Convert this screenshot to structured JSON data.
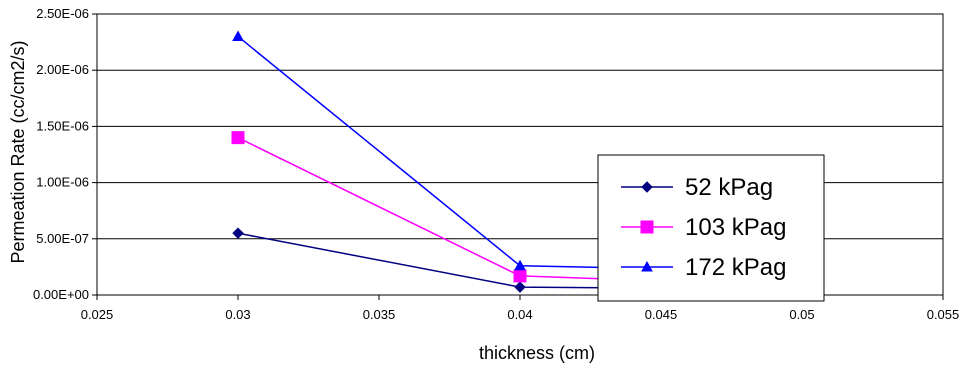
{
  "chart_data": {
    "type": "line",
    "title": "",
    "xlabel": "thickness (cm)",
    "ylabel": "Permeation Rate (cc/cm2/s)",
    "xlim": [
      0.025,
      0.055
    ],
    "ylim": [
      0,
      2.5e-06
    ],
    "x_ticks": [
      0.025,
      0.03,
      0.035,
      0.04,
      0.045,
      0.05,
      0.055
    ],
    "x_tick_labels": [
      "0.025",
      "0.03",
      "0.035",
      "0.04",
      "0.045",
      "0.05",
      "0.055"
    ],
    "y_ticks": [
      0,
      5e-07,
      1e-06,
      1.5e-06,
      2e-06,
      2.5e-06
    ],
    "y_tick_labels": [
      "0.00E+00",
      "5.00E-07",
      "1.00E-06",
      "1.50E-06",
      "2.00E-06",
      "2.50E-06"
    ],
    "grid": "horizontal",
    "legend_position": "right",
    "series": [
      {
        "name": "52 kPag",
        "marker": "diamond",
        "color": "#000080",
        "x": [
          0.03,
          0.04,
          0.05
        ],
        "y": [
          5.5e-07,
          7e-08,
          5e-08
        ]
      },
      {
        "name": "103 kPag",
        "marker": "square",
        "color": "#ff00ff",
        "x": [
          0.03,
          0.04,
          0.05
        ],
        "y": [
          1.4e-06,
          1.7e-07,
          8e-08
        ]
      },
      {
        "name": "172 kPag",
        "marker": "triangle",
        "color": "#0000ff",
        "x": [
          0.03,
          0.04,
          0.05
        ],
        "y": [
          2.3e-06,
          2.6e-07,
          2.1e-07
        ]
      }
    ]
  }
}
